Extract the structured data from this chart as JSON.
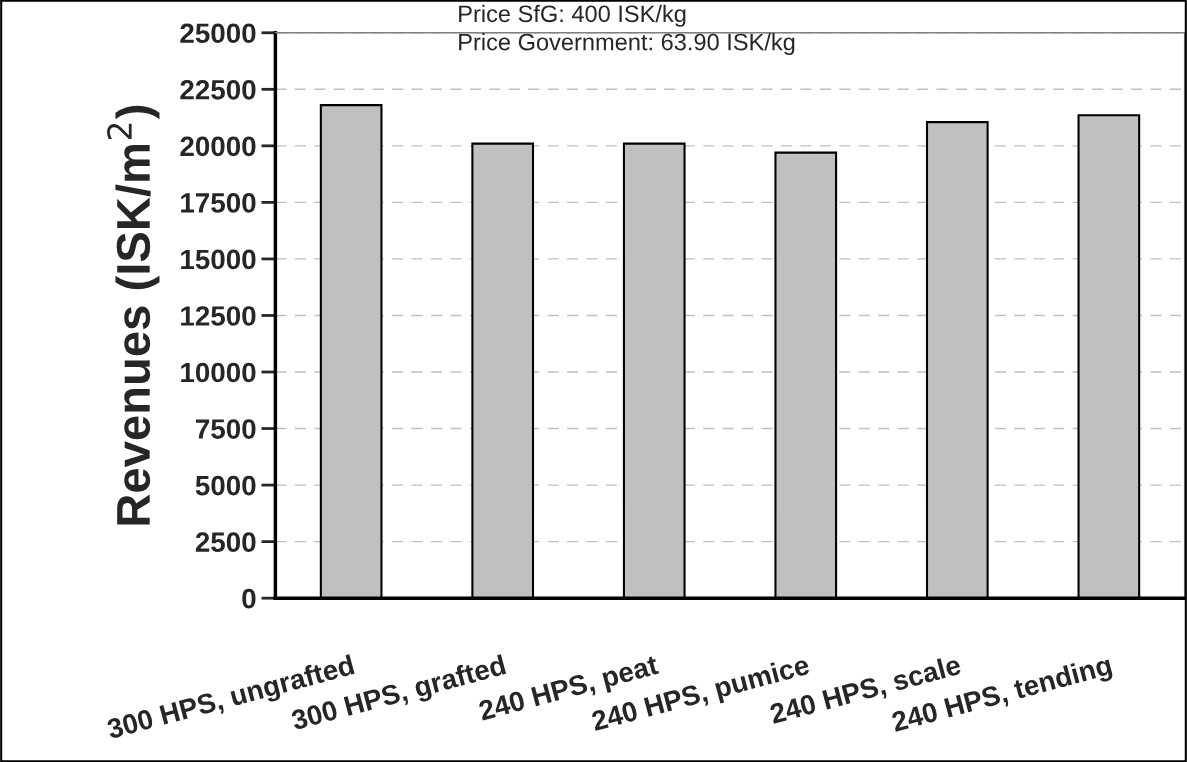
{
  "chart_data": {
    "type": "bar",
    "ylabel": "Revenues (ISK/m$^{2}$)",
    "categories": [
      "300 HPS, ungrafted",
      "300 HPS, grafted",
      "240 HPS, peat",
      "240 HPS, pumice",
      "240 HPS, scale",
      "240 HPS, tending"
    ],
    "values": [
      21800,
      20100,
      20100,
      19700,
      21050,
      21350
    ],
    "color": "#c0c0c0",
    "ylim": [
      0,
      25000
    ],
    "yticks": [
      0,
      2500,
      5000,
      7500,
      10000,
      12500,
      15000,
      17500,
      20000,
      22500,
      25000
    ],
    "grid": "y",
    "annotations": [
      "Price SfG: 400 ISK/kg",
      "Price Government: 63.90 ISK/kg"
    ]
  }
}
